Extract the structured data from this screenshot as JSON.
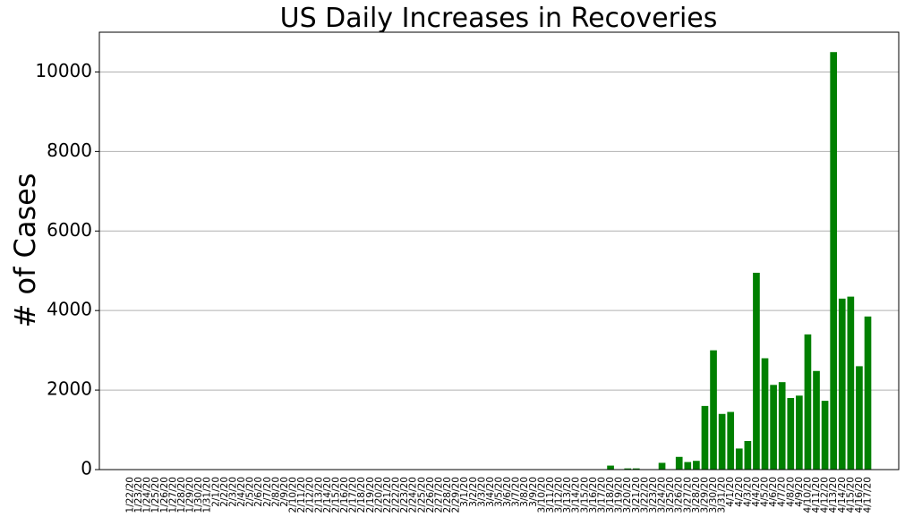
{
  "chart_data": {
    "type": "bar",
    "title": "US Daily Increases in Recoveries",
    "y_label": "# of Cases",
    "categories": [
      "1/22/20",
      "1/23/20",
      "1/24/20",
      "1/25/20",
      "1/26/20",
      "1/27/20",
      "1/28/20",
      "1/29/20",
      "1/30/20",
      "1/31/20",
      "2/1/20",
      "2/2/20",
      "2/3/20",
      "2/4/20",
      "2/5/20",
      "2/6/20",
      "2/7/20",
      "2/8/20",
      "2/9/20",
      "2/10/20",
      "2/11/20",
      "2/12/20",
      "2/13/20",
      "2/14/20",
      "2/15/20",
      "2/16/20",
      "2/17/20",
      "2/18/20",
      "2/19/20",
      "2/20/20",
      "2/21/20",
      "2/22/20",
      "2/23/20",
      "2/24/20",
      "2/25/20",
      "2/26/20",
      "2/27/20",
      "2/28/20",
      "2/29/20",
      "3/1/20",
      "3/2/20",
      "3/3/20",
      "3/4/20",
      "3/5/20",
      "3/6/20",
      "3/7/20",
      "3/8/20",
      "3/9/20",
      "3/10/20",
      "3/11/20",
      "3/12/20",
      "3/13/20",
      "3/14/20",
      "3/15/20",
      "3/16/20",
      "3/17/20",
      "3/18/20",
      "3/19/20",
      "3/20/20",
      "3/21/20",
      "3/22/20",
      "3/23/20",
      "3/24/20",
      "3/25/20",
      "3/26/20",
      "3/27/20",
      "3/28/20",
      "3/29/20",
      "3/30/20",
      "3/31/20",
      "4/1/20",
      "4/2/20",
      "4/3/20",
      "4/4/20",
      "4/5/20",
      "4/6/20",
      "4/7/20",
      "4/8/20",
      "4/9/20",
      "4/10/20",
      "4/11/20",
      "4/12/20",
      "4/13/20",
      "4/14/20",
      "4/15/20",
      "4/16/20",
      "4/17/20"
    ],
    "values": [
      0,
      0,
      0,
      0,
      0,
      0,
      0,
      0,
      0,
      0,
      0,
      0,
      0,
      0,
      0,
      0,
      0,
      0,
      0,
      0,
      0,
      0,
      0,
      0,
      0,
      0,
      0,
      0,
      0,
      0,
      0,
      0,
      0,
      0,
      0,
      0,
      0,
      0,
      0,
      0,
      0,
      0,
      0,
      0,
      0,
      0,
      0,
      0,
      0,
      0,
      0,
      0,
      0,
      0,
      0,
      0,
      100,
      0,
      30,
      30,
      0,
      0,
      170,
      0,
      320,
      190,
      220,
      1600,
      3000,
      1400,
      1450,
      530,
      720,
      4950,
      2800,
      2130,
      2200,
      1800,
      1860,
      3400,
      2480,
      1730,
      10500,
      4300,
      4350,
      2600,
      3850
    ],
    "color": "#008000",
    "ylim": [
      0,
      11000
    ],
    "yticks": [
      0,
      2000,
      4000,
      6000,
      8000,
      10000
    ],
    "grid": true
  }
}
